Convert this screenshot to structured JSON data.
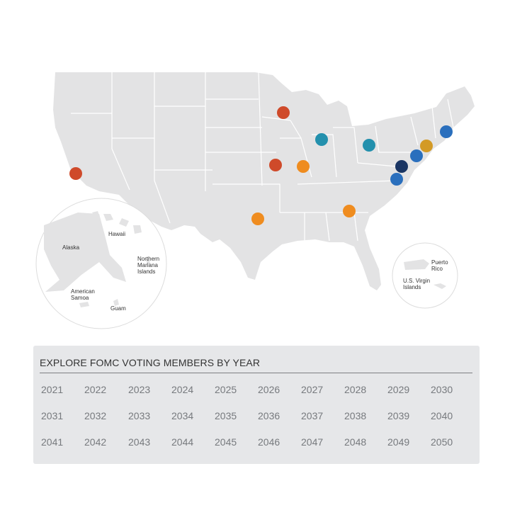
{
  "map": {
    "land_color": "#e3e3e4",
    "border_color": "#ffffff",
    "insets": {
      "pacific": [
        "Hawaii",
        "Alaska",
        "Northern",
        "Mariana",
        "Islands",
        "American",
        "Samoa",
        "Guam"
      ],
      "caribbean": [
        "Puerto",
        "Rico",
        "U.S. Virgin",
        "Islands"
      ]
    },
    "markers": [
      {
        "id": "san-francisco",
        "color": "#cf4a2a"
      },
      {
        "id": "minneapolis",
        "color": "#cf4a2a"
      },
      {
        "id": "kansas-city",
        "color": "#cf4a2a"
      },
      {
        "id": "st-louis",
        "color": "#ef8c1f"
      },
      {
        "id": "dallas",
        "color": "#ef8c1f"
      },
      {
        "id": "atlanta",
        "color": "#ef8c1f"
      },
      {
        "id": "chicago",
        "color": "#2390ad"
      },
      {
        "id": "cleveland",
        "color": "#2390ad"
      },
      {
        "id": "new-york",
        "color": "#d39a26"
      },
      {
        "id": "philadelphia",
        "color": "#2a6fbd"
      },
      {
        "id": "boston",
        "color": "#2a6fbd"
      },
      {
        "id": "richmond",
        "color": "#2a6fbd"
      },
      {
        "id": "board-of-governors",
        "color": "#1a3563"
      }
    ]
  },
  "panel": {
    "title": "EXPLORE FOMC VOTING MEMBERS BY YEAR",
    "years": [
      [
        "2021",
        "2022",
        "2023",
        "2024",
        "2025",
        "2026",
        "2027",
        "2028",
        "2029",
        "2030"
      ],
      [
        "2031",
        "2032",
        "2033",
        "2034",
        "2035",
        "2036",
        "2037",
        "2038",
        "2039",
        "2040"
      ],
      [
        "2041",
        "2042",
        "2043",
        "2044",
        "2045",
        "2046",
        "2047",
        "2048",
        "2049",
        "2050"
      ]
    ]
  }
}
